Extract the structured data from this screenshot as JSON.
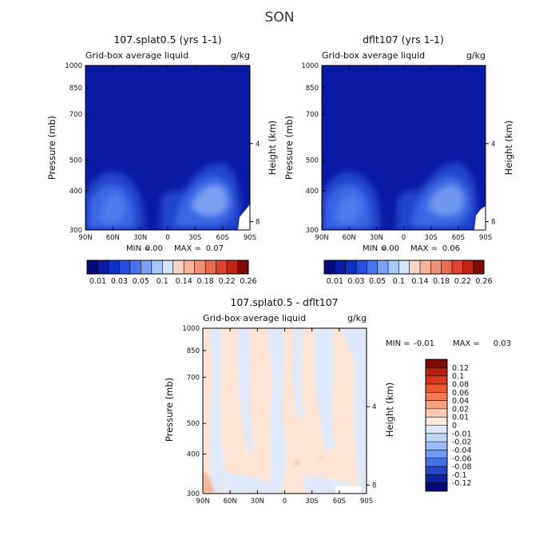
{
  "super_title": "SON",
  "chart_data": [
    {
      "type": "heatmap",
      "title": "107.splat0.5 (yrs 1-1)",
      "subtitle": "Grid-box average liquid",
      "units": "g/kg",
      "xlabel": "",
      "ylabel": "Pressure (mb)",
      "ylabel_right": "Height (km)",
      "x_ticks": [
        "90N",
        "60N",
        "30N",
        "0",
        "30S",
        "60S",
        "90S"
      ],
      "y_ticks": [
        "300",
        "400",
        "500",
        "700",
        "850",
        "1000"
      ],
      "y_right_ticks": [
        "8",
        "4"
      ],
      "xlim": [
        90,
        -90
      ],
      "ylim": [
        1000,
        300
      ],
      "min_label": "MIN =",
      "min_value": "0.00",
      "max_label": "MAX =",
      "max_value": "0.07",
      "colorbar": {
        "orientation": "horizontal",
        "levels": [
          "0.01",
          "0.03",
          "0.05",
          "0.1",
          "0.14",
          "0.18",
          "0.22",
          "0.26"
        ]
      }
    },
    {
      "type": "heatmap",
      "title": "dflt107 (yrs 1-1)",
      "subtitle": "Grid-box average liquid",
      "units": "g/kg",
      "xlabel": "",
      "ylabel": "Pressure (mb)",
      "ylabel_right": "Height (km)",
      "x_ticks": [
        "90N",
        "60N",
        "30N",
        "0",
        "30S",
        "60S",
        "90S"
      ],
      "y_ticks": [
        "300",
        "400",
        "500",
        "700",
        "850",
        "1000"
      ],
      "y_right_ticks": [
        "8",
        "4"
      ],
      "xlim": [
        90,
        -90
      ],
      "ylim": [
        1000,
        300
      ],
      "min_label": "MIN =",
      "min_value": "0.00",
      "max_label": "MAX =",
      "max_value": "0.06",
      "colorbar": {
        "orientation": "horizontal",
        "levels": [
          "0.01",
          "0.03",
          "0.05",
          "0.1",
          "0.14",
          "0.18",
          "0.22",
          "0.26"
        ]
      }
    },
    {
      "type": "heatmap",
      "title": "107.splat0.5 - dflt107",
      "subtitle": "Grid-box average liquid",
      "units": "g/kg",
      "xlabel": "",
      "ylabel": "Pressure (mb)",
      "ylabel_right": "Height (km)",
      "x_ticks": [
        "90N",
        "60N",
        "30N",
        "0",
        "30S",
        "60S",
        "90S"
      ],
      "y_ticks": [
        "300",
        "400",
        "500",
        "700",
        "850",
        "1000"
      ],
      "y_right_ticks": [
        "8",
        "4"
      ],
      "xlim": [
        90,
        -90
      ],
      "ylim": [
        1000,
        300
      ],
      "min_label": "MIN =",
      "min_value": "-0.01",
      "max_label": "MAX =",
      "max_value": "0.03",
      "colorbar": {
        "orientation": "vertical",
        "levels": [
          "0.12",
          "0.1",
          "0.08",
          "0.06",
          "0.04",
          "0.02",
          "0.01",
          "0",
          "-0.01",
          "-0.02",
          "-0.04",
          "-0.06",
          "-0.08",
          "-0.1",
          "-0.12"
        ]
      }
    }
  ],
  "colors": {
    "seq_scale": [
      "#070b7a",
      "#0a1ba6",
      "#1030c8",
      "#2a4de0",
      "#4a73ee",
      "#7aa0f4",
      "#a8c6f8",
      "#d4e4fb",
      "#f9d5c7",
      "#f6b49d",
      "#f19177",
      "#ea6a4f",
      "#df4330",
      "#c52315",
      "#7e0b07"
    ],
    "div_scale": [
      "#7e0b07",
      "#b81f12",
      "#d9341c",
      "#ec5632",
      "#f27a55",
      "#f5a07f",
      "#f9cbb2",
      "#fde8dc",
      "#deeafc",
      "#bfd4f9",
      "#9ebcf5",
      "#6f98ee",
      "#4570e3",
      "#2447c9",
      "#0c22a0",
      "#070b7a"
    ],
    "field_background": "#0a1aa5",
    "diff_pos": "#fde4d4",
    "diff_neg": "#dde9fb"
  }
}
